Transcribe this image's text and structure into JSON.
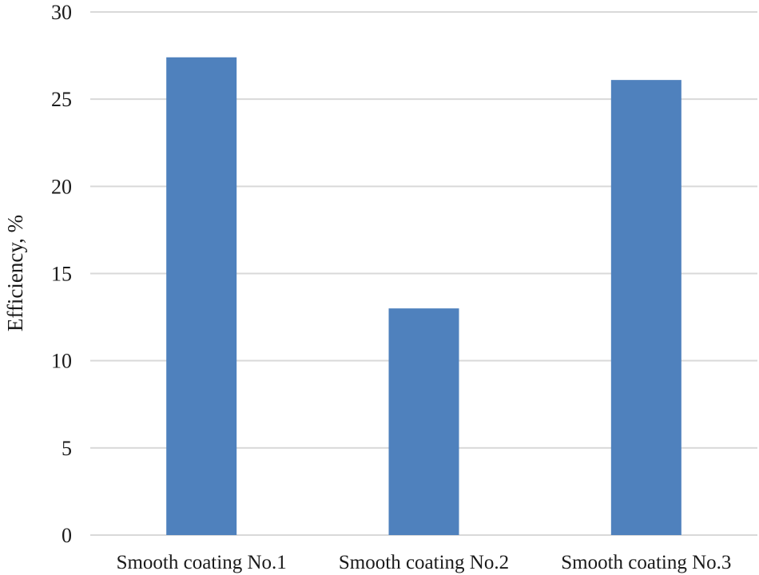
{
  "chart_data": {
    "type": "bar",
    "categories": [
      "Smooth coating No.1",
      "Smooth coating No.2",
      "Smooth coating No.3"
    ],
    "series": [
      {
        "values": [
          27.4,
          13.0,
          26.1
        ]
      }
    ],
    "title": "",
    "xlabel": "",
    "ylabel": "Efficiency, %",
    "ylim": [
      0,
      30
    ],
    "yticks": [
      "0",
      "5",
      "10",
      "15",
      "20",
      "25",
      "30"
    ],
    "grid": true,
    "legend": "none",
    "colors": {
      "bar": "#4f81bd",
      "grid": "#d9d9d9",
      "text": "#1a1a1a"
    }
  }
}
